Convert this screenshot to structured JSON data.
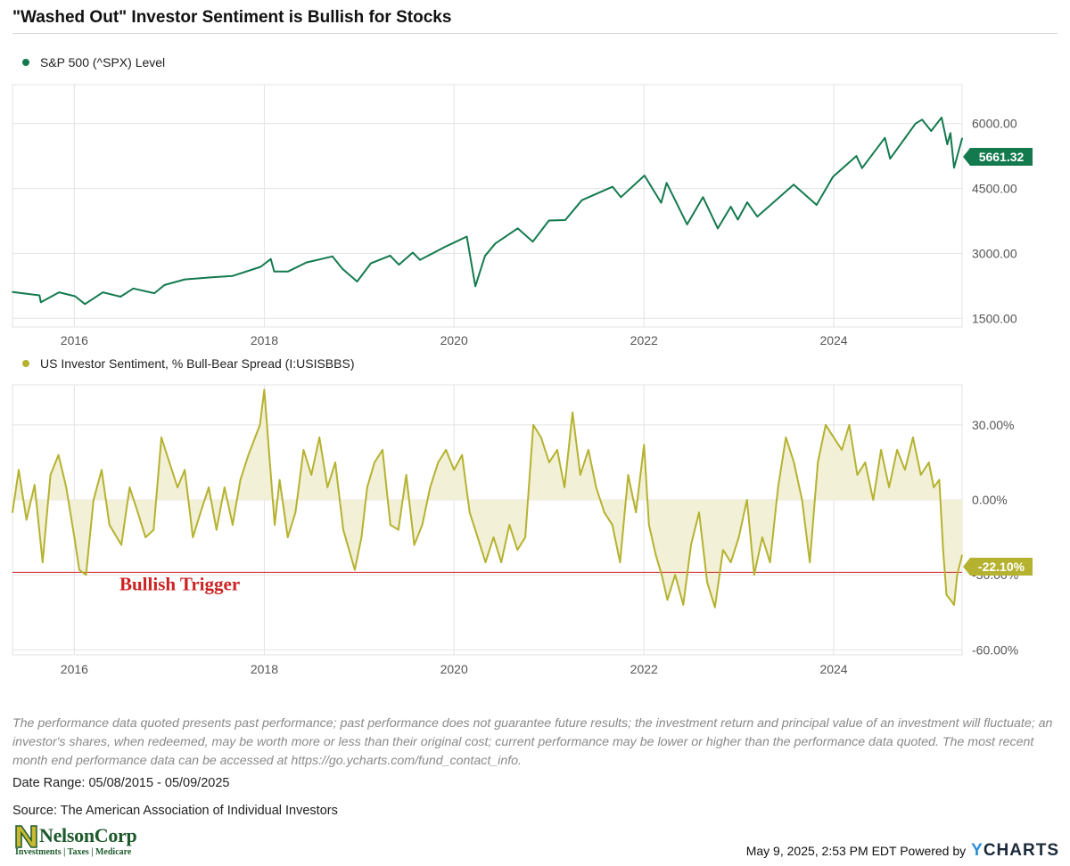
{
  "title": "\"Washed Out\" Investor Sentiment is Bullish for Stocks",
  "colors": {
    "spx": "#137a4e",
    "sentiment": "#b5b230",
    "sentiment_fill": "#f2f0d6",
    "trigger": "#cc2222",
    "grid": "#e3e3e3",
    "axis_text": "#555555"
  },
  "chart_data": [
    {
      "type": "line",
      "series": [
        {
          "name": "S&P 500 (^SPX) Level",
          "color": "#137a4e"
        }
      ],
      "x_range": [
        "2015-05-08",
        "2025-05-09"
      ],
      "x_ticks": [
        "2016",
        "2018",
        "2020",
        "2022",
        "2024"
      ],
      "ylim": [
        1300,
        6900
      ],
      "y_ticks": [
        "1500.00",
        "3000.00",
        "4500.00",
        "6000.00"
      ],
      "last_value_label": "5661.32",
      "points": [
        [
          "2015-05-08",
          2110
        ],
        [
          "2015-08-20",
          2030
        ],
        [
          "2015-08-25",
          1870
        ],
        [
          "2015-11-03",
          2100
        ],
        [
          "2016-01-04",
          2010
        ],
        [
          "2016-02-11",
          1830
        ],
        [
          "2016-04-20",
          2100
        ],
        [
          "2016-06-27",
          2000
        ],
        [
          "2016-08-15",
          2190
        ],
        [
          "2016-11-04",
          2080
        ],
        [
          "2016-12-13",
          2270
        ],
        [
          "2017-03-01",
          2400
        ],
        [
          "2017-06-19",
          2450
        ],
        [
          "2017-09-01",
          2480
        ],
        [
          "2017-12-18",
          2690
        ],
        [
          "2018-01-26",
          2870
        ],
        [
          "2018-02-08",
          2580
        ],
        [
          "2018-04-02",
          2580
        ],
        [
          "2018-06-12",
          2790
        ],
        [
          "2018-09-20",
          2930
        ],
        [
          "2018-10-29",
          2640
        ],
        [
          "2018-12-24",
          2350
        ],
        [
          "2019-02-15",
          2770
        ],
        [
          "2019-04-30",
          2950
        ],
        [
          "2019-06-03",
          2740
        ],
        [
          "2019-07-26",
          3020
        ],
        [
          "2019-08-23",
          2850
        ],
        [
          "2019-11-27",
          3150
        ],
        [
          "2020-02-19",
          3390
        ],
        [
          "2020-03-23",
          2240
        ],
        [
          "2020-04-29",
          2940
        ],
        [
          "2020-06-08",
          3230
        ],
        [
          "2020-09-02",
          3580
        ],
        [
          "2020-10-30",
          3270
        ],
        [
          "2020-12-31",
          3760
        ],
        [
          "2021-03-04",
          3770
        ],
        [
          "2021-05-07",
          4230
        ],
        [
          "2021-09-02",
          4540
        ],
        [
          "2021-10-04",
          4300
        ],
        [
          "2022-01-03",
          4800
        ],
        [
          "2022-03-08",
          4170
        ],
        [
          "2022-03-29",
          4630
        ],
        [
          "2022-06-16",
          3670
        ],
        [
          "2022-08-16",
          4300
        ],
        [
          "2022-10-12",
          3580
        ],
        [
          "2022-12-01",
          4080
        ],
        [
          "2022-12-28",
          3780
        ],
        [
          "2023-02-02",
          4180
        ],
        [
          "2023-03-13",
          3850
        ],
        [
          "2023-07-31",
          4590
        ],
        [
          "2023-10-27",
          4120
        ],
        [
          "2023-12-29",
          4770
        ],
        [
          "2024-03-28",
          5250
        ],
        [
          "2024-04-19",
          4970
        ],
        [
          "2024-07-16",
          5670
        ],
        [
          "2024-08-05",
          5190
        ],
        [
          "2024-11-11",
          6000
        ],
        [
          "2024-12-06",
          6090
        ],
        [
          "2025-01-10",
          5830
        ],
        [
          "2025-02-19",
          6140
        ],
        [
          "2025-03-13",
          5520
        ],
        [
          "2025-03-25",
          5780
        ],
        [
          "2025-04-08",
          4980
        ],
        [
          "2025-05-09",
          5661.32
        ]
      ]
    },
    {
      "type": "area",
      "series": [
        {
          "name": "US Investor Sentiment, % Bull-Bear Spread (I:USISBBS)",
          "color": "#b5b230"
        }
      ],
      "x_range": [
        "2015-05-08",
        "2025-05-09"
      ],
      "x_ticks": [
        "2016",
        "2018",
        "2020",
        "2022",
        "2024"
      ],
      "ylim": [
        -62,
        46
      ],
      "y_ticks": [
        "30.00%",
        "0.00%",
        "-30.00%",
        "-60.00%"
      ],
      "last_value_label": "-22.10%",
      "reference_line": {
        "value": -29,
        "label": "Bullish Trigger"
      },
      "points": [
        [
          "2015-05-08",
          -5
        ],
        [
          "2015-06-01",
          12
        ],
        [
          "2015-07-01",
          -8
        ],
        [
          "2015-08-01",
          6
        ],
        [
          "2015-09-01",
          -25
        ],
        [
          "2015-10-01",
          10
        ],
        [
          "2015-11-01",
          18
        ],
        [
          "2015-12-01",
          5
        ],
        [
          "2016-01-01",
          -15
        ],
        [
          "2016-01-20",
          -28
        ],
        [
          "2016-02-15",
          -30
        ],
        [
          "2016-03-15",
          0
        ],
        [
          "2016-04-15",
          12
        ],
        [
          "2016-05-15",
          -10
        ],
        [
          "2016-06-30",
          -18
        ],
        [
          "2016-08-01",
          5
        ],
        [
          "2016-09-01",
          -5
        ],
        [
          "2016-10-01",
          -15
        ],
        [
          "2016-11-01",
          -12
        ],
        [
          "2016-12-01",
          25
        ],
        [
          "2017-01-01",
          15
        ],
        [
          "2017-02-01",
          5
        ],
        [
          "2017-03-01",
          12
        ],
        [
          "2017-04-01",
          -15
        ],
        [
          "2017-05-01",
          -5
        ],
        [
          "2017-06-01",
          5
        ],
        [
          "2017-07-01",
          -12
        ],
        [
          "2017-08-01",
          5
        ],
        [
          "2017-09-01",
          -10
        ],
        [
          "2017-10-01",
          8
        ],
        [
          "2017-11-01",
          18
        ],
        [
          "2017-12-15",
          30
        ],
        [
          "2018-01-01",
          44
        ],
        [
          "2018-01-20",
          18
        ],
        [
          "2018-02-10",
          -10
        ],
        [
          "2018-03-01",
          8
        ],
        [
          "2018-04-01",
          -15
        ],
        [
          "2018-05-01",
          -5
        ],
        [
          "2018-06-01",
          20
        ],
        [
          "2018-07-01",
          10
        ],
        [
          "2018-08-01",
          25
        ],
        [
          "2018-09-01",
          5
        ],
        [
          "2018-10-01",
          15
        ],
        [
          "2018-11-01",
          -12
        ],
        [
          "2018-12-15",
          -28
        ],
        [
          "2019-01-10",
          -15
        ],
        [
          "2019-02-01",
          5
        ],
        [
          "2019-03-01",
          15
        ],
        [
          "2019-04-01",
          20
        ],
        [
          "2019-05-01",
          -10
        ],
        [
          "2019-06-01",
          -12
        ],
        [
          "2019-07-01",
          10
        ],
        [
          "2019-08-01",
          -18
        ],
        [
          "2019-09-01",
          -10
        ],
        [
          "2019-10-01",
          5
        ],
        [
          "2019-11-01",
          15
        ],
        [
          "2019-12-01",
          20
        ],
        [
          "2020-01-01",
          12
        ],
        [
          "2020-02-01",
          18
        ],
        [
          "2020-03-01",
          -5
        ],
        [
          "2020-04-01",
          -15
        ],
        [
          "2020-05-01",
          -25
        ],
        [
          "2020-06-01",
          -15
        ],
        [
          "2020-07-01",
          -25
        ],
        [
          "2020-08-01",
          -10
        ],
        [
          "2020-09-01",
          -20
        ],
        [
          "2020-10-01",
          -15
        ],
        [
          "2020-11-01",
          30
        ],
        [
          "2020-12-01",
          25
        ],
        [
          "2021-01-01",
          15
        ],
        [
          "2021-02-01",
          20
        ],
        [
          "2021-03-01",
          5
        ],
        [
          "2021-04-01",
          35
        ],
        [
          "2021-05-01",
          10
        ],
        [
          "2021-06-01",
          20
        ],
        [
          "2021-07-01",
          5
        ],
        [
          "2021-08-01",
          -5
        ],
        [
          "2021-09-01",
          -10
        ],
        [
          "2021-10-01",
          -25
        ],
        [
          "2021-11-01",
          10
        ],
        [
          "2021-12-01",
          -5
        ],
        [
          "2022-01-01",
          22
        ],
        [
          "2022-01-20",
          -10
        ],
        [
          "2022-02-15",
          -22
        ],
        [
          "2022-03-10",
          -30
        ],
        [
          "2022-04-01",
          -40
        ],
        [
          "2022-05-01",
          -30
        ],
        [
          "2022-06-01",
          -42
        ],
        [
          "2022-07-01",
          -18
        ],
        [
          "2022-08-01",
          -5
        ],
        [
          "2022-09-01",
          -33
        ],
        [
          "2022-10-01",
          -43
        ],
        [
          "2022-11-01",
          -20
        ],
        [
          "2022-12-01",
          -25
        ],
        [
          "2023-01-01",
          -15
        ],
        [
          "2023-02-01",
          0
        ],
        [
          "2023-03-01",
          -30
        ],
        [
          "2023-04-01",
          -15
        ],
        [
          "2023-05-01",
          -25
        ],
        [
          "2023-06-01",
          5
        ],
        [
          "2023-07-01",
          25
        ],
        [
          "2023-08-01",
          15
        ],
        [
          "2023-09-01",
          0
        ],
        [
          "2023-10-01",
          -25
        ],
        [
          "2023-11-01",
          15
        ],
        [
          "2023-12-01",
          30
        ],
        [
          "2024-01-01",
          25
        ],
        [
          "2024-02-01",
          20
        ],
        [
          "2024-03-01",
          30
        ],
        [
          "2024-04-01",
          10
        ],
        [
          "2024-05-01",
          15
        ],
        [
          "2024-06-01",
          0
        ],
        [
          "2024-07-01",
          20
        ],
        [
          "2024-08-01",
          5
        ],
        [
          "2024-09-01",
          20
        ],
        [
          "2024-10-01",
          12
        ],
        [
          "2024-11-01",
          25
        ],
        [
          "2024-12-01",
          10
        ],
        [
          "2025-01-01",
          15
        ],
        [
          "2025-01-20",
          5
        ],
        [
          "2025-02-10",
          8
        ],
        [
          "2025-02-25",
          -20
        ],
        [
          "2025-03-10",
          -38
        ],
        [
          "2025-03-25",
          -40
        ],
        [
          "2025-04-08",
          -42
        ],
        [
          "2025-04-20",
          -30
        ],
        [
          "2025-05-09",
          -22.1
        ]
      ]
    }
  ],
  "disclaimer": "The performance data quoted presents past performance; past performance does not guarantee future results; the investment return and principal value of an investment will fluctuate; an investor's shares, when redeemed, may be worth more or less than their original cost; current performance may be lower or higher than the performance data quoted. The most recent month end performance data can be accessed at https://go.ycharts.com/fund_contact_info.",
  "date_range": "Date Range: 05/08/2015 - 05/09/2025",
  "source": "Source: The American Association of Individual Investors",
  "logo": {
    "name": "NelsonCorp",
    "tagline": "Investments | Taxes | Medicare"
  },
  "footer": {
    "timestamp": "May 9, 2025, 2:53 PM EDT Powered by",
    "brand_y": "Y",
    "brand_rest": "CHARTS"
  }
}
